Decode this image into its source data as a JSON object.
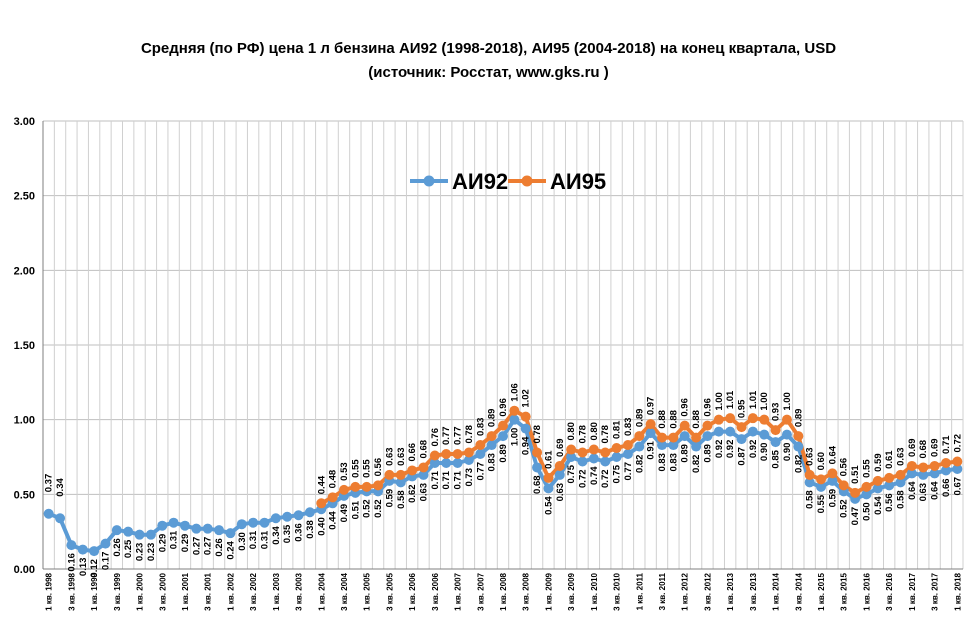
{
  "chart_data": {
    "type": "line",
    "title": "Средняя (по РФ) цена 1 л бензина АИ92 (1998-2018), АИ95 (2004-2018) на конец квартала,  USD",
    "subtitle": "(источник: Росстат,  www.gks.ru )",
    "ylim": [
      0,
      3
    ],
    "yticks": [
      "0.00",
      "0.50",
      "1.00",
      "1.50",
      "2.00",
      "2.50",
      "3.00"
    ],
    "grid": true,
    "legend_position": "top-center",
    "n_points": 81,
    "start_year": 1998,
    "quarter_label": "кв.",
    "series": [
      {
        "name": "АИ92",
        "color": "#5B9BD5",
        "values": [
          0.37,
          0.34,
          0.16,
          0.13,
          0.12,
          0.17,
          0.26,
          0.25,
          0.23,
          0.23,
          0.29,
          0.31,
          0.29,
          0.27,
          0.27,
          0.26,
          0.24,
          0.3,
          0.31,
          0.31,
          0.34,
          0.35,
          0.36,
          0.38,
          0.4,
          0.44,
          0.49,
          0.51,
          0.52,
          0.52,
          0.59,
          0.58,
          0.62,
          0.63,
          0.71,
          0.71,
          0.71,
          0.73,
          0.77,
          0.83,
          0.89,
          1.0,
          0.94,
          0.68,
          0.54,
          0.63,
          0.75,
          0.72,
          0.74,
          0.72,
          0.75,
          0.77,
          0.82,
          0.91,
          0.83,
          0.83,
          0.89,
          0.82,
          0.89,
          0.92,
          0.92,
          0.87,
          0.92,
          0.9,
          0.85,
          0.9,
          0.82,
          0.58,
          0.55,
          0.59,
          0.52,
          0.47,
          0.5,
          0.54,
          0.56,
          0.58,
          0.64,
          0.63,
          0.64,
          0.66,
          0.67
        ],
        "labels": [
          "0.37",
          "0.34",
          "0.16",
          "0.13",
          "0.12",
          "0.17",
          "0.26",
          "0.25",
          "0.23",
          "0.23",
          "0.29",
          "0.31",
          "0.29",
          "0.27",
          "0.27",
          "0.26",
          "0.24",
          "0.30",
          "0.31",
          "0.31",
          "0.34",
          "0.35",
          "0.36",
          "0.38",
          "0.40",
          "0.44",
          "0.49",
          "0.51",
          "0.52",
          "0.52",
          "0.59",
          "0.58",
          "0.62",
          "0.63",
          "0.71",
          "0.71",
          "0.71",
          "0.73",
          "0.77",
          "0.83",
          "0.89",
          "1.00",
          "0.94",
          "0.68",
          "0.54",
          "0.63",
          "0.75",
          "0.72",
          "0.74",
          "0.72",
          "0.75",
          "0.77",
          "0.82",
          "0.91",
          "0.83",
          "0.83",
          "0.89",
          "0.82",
          "0.89",
          "0.92",
          "0.92",
          "0.87",
          "0.92",
          "0.90",
          "0.85",
          "0.90",
          "0.82",
          "0.58",
          "0.55",
          "0.59",
          "0.52",
          "0.47",
          "0.50",
          "0.54",
          "0.56",
          "0.58",
          "0.64",
          "0.63",
          "0.64",
          "0.66",
          "0.67"
        ]
      },
      {
        "name": "АИ95",
        "color": "#ED7D31",
        "values": [
          null,
          null,
          null,
          null,
          null,
          null,
          null,
          null,
          null,
          null,
          null,
          null,
          null,
          null,
          null,
          null,
          null,
          null,
          null,
          null,
          null,
          null,
          null,
          null,
          0.44,
          0.48,
          0.53,
          0.55,
          0.55,
          0.56,
          0.63,
          0.63,
          0.66,
          0.68,
          0.76,
          0.77,
          0.77,
          0.78,
          0.83,
          0.89,
          0.96,
          1.06,
          1.02,
          0.78,
          0.61,
          0.69,
          0.8,
          0.78,
          0.8,
          0.78,
          0.81,
          0.83,
          0.89,
          0.97,
          0.88,
          0.88,
          0.96,
          0.88,
          0.96,
          1.0,
          1.01,
          0.95,
          1.01,
          1.0,
          0.93,
          1.0,
          0.89,
          0.63,
          0.6,
          0.64,
          0.56,
          0.51,
          0.55,
          0.59,
          0.61,
          0.63,
          0.69,
          0.68,
          0.69,
          0.71,
          0.72
        ],
        "labels": [
          "",
          "",
          "",
          "",
          "",
          "",
          "",
          "",
          "",
          "",
          "",
          "",
          "",
          "",
          "",
          "",
          "",
          "",
          "",
          "",
          "",
          "",
          "",
          "",
          "0.44",
          "0.48",
          "0.53",
          "0.55",
          "0.55",
          "0.56",
          "0.63",
          "0.63",
          "0.66",
          "0.68",
          "0.76",
          "0.77",
          "0.77",
          "0.78",
          "0.83",
          "0.89",
          "0.96",
          "1.06",
          "1.02",
          "0.78",
          "0.61",
          "0.69",
          "0.80",
          "0.78",
          "0.80",
          "0.78",
          "0.81",
          "0.83",
          "0.89",
          "0.97",
          "0.88",
          "0.88",
          "0.96",
          "0.88",
          "0.96",
          "1.00",
          "1.01",
          "0.95",
          "1.01",
          "1.00",
          "0.93",
          "1.00",
          "0.89",
          "0.63",
          "0.60",
          "0.64",
          "0.56",
          "0.51",
          "0.55",
          "0.59",
          "0.61",
          "0.63",
          "0.69",
          "0.68",
          "0.69",
          "0.71",
          "0.72"
        ]
      }
    ]
  }
}
